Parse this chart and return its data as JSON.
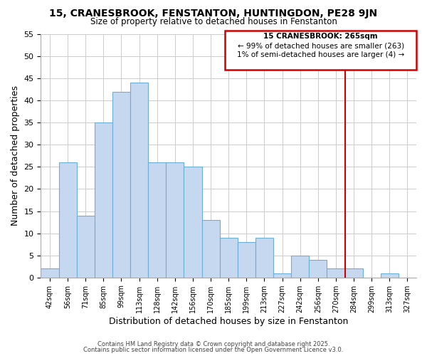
{
  "title": "15, CRANESBROOK, FENSTANTON, HUNTINGDON, PE28 9JN",
  "subtitle": "Size of property relative to detached houses in Fenstanton",
  "xlabel": "Distribution of detached houses by size in Fenstanton",
  "ylabel": "Number of detached properties",
  "bin_labels": [
    "42sqm",
    "56sqm",
    "71sqm",
    "85sqm",
    "99sqm",
    "113sqm",
    "128sqm",
    "142sqm",
    "156sqm",
    "170sqm",
    "185sqm",
    "199sqm",
    "213sqm",
    "227sqm",
    "242sqm",
    "256sqm",
    "270sqm",
    "284sqm",
    "299sqm",
    "313sqm",
    "327sqm"
  ],
  "bar_heights": [
    2,
    26,
    14,
    35,
    42,
    44,
    26,
    26,
    25,
    13,
    9,
    8,
    9,
    1,
    5,
    4,
    2,
    2,
    0,
    1,
    0
  ],
  "bar_color": "#c5d8f0",
  "bar_edge_color": "#6baed6",
  "vline_x": 16.5,
  "vline_color": "#cc0000",
  "ylim": [
    0,
    55
  ],
  "yticks": [
    0,
    5,
    10,
    15,
    20,
    25,
    30,
    35,
    40,
    45,
    50,
    55
  ],
  "annotation_title": "15 CRANESBROOK: 265sqm",
  "annotation_line1": "← 99% of detached houses are smaller (263)",
  "annotation_line2": "1% of semi-detached houses are larger (4) →",
  "annotation_box_color": "#cc0000",
  "footer_line1": "Contains HM Land Registry data © Crown copyright and database right 2025.",
  "footer_line2": "Contains public sector information licensed under the Open Government Licence v3.0.",
  "background_color": "#ffffff",
  "grid_color": "#cccccc"
}
